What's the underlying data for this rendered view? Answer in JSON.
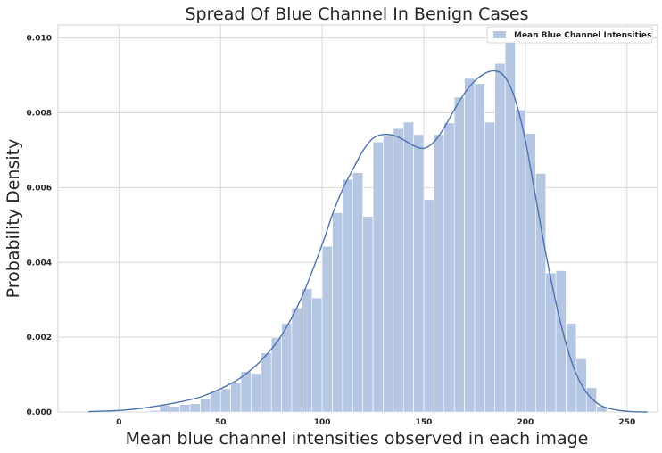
{
  "chart_data": {
    "type": "bar",
    "title": "Spread Of Blue Channel In Benign Cases",
    "xlabel": "Mean blue channel intensities observed in each image",
    "ylabel": "Probability Density",
    "xlim": [
      -30,
      265
    ],
    "ylim": [
      0,
      0.01035
    ],
    "x_ticks": [
      0,
      50,
      100,
      150,
      200,
      250
    ],
    "y_ticks": [
      0.0,
      0.002,
      0.004,
      0.006,
      0.008,
      0.01
    ],
    "y_tick_labels": [
      "0.000",
      "0.002",
      "0.004",
      "0.006",
      "0.008",
      "0.010"
    ],
    "grid": true,
    "legend": {
      "position": "top-right",
      "entries": [
        "Mean Blue Channel Intensities"
      ]
    },
    "series": [
      {
        "name": "Mean Blue Channel Intensities",
        "type": "histogram",
        "color": "#b4c6e1",
        "bin_edges": [
          15,
          20,
          25,
          30,
          35,
          40,
          45,
          50,
          55,
          60,
          65,
          70,
          75,
          80,
          85,
          90,
          95,
          100,
          105,
          110,
          115,
          120,
          125,
          130,
          135,
          140,
          145,
          150,
          155,
          160,
          165,
          170,
          175,
          180,
          185,
          190,
          195,
          200,
          205,
          210,
          215,
          220,
          225,
          230,
          235
        ],
        "values": [
          4e-05,
          0.00018,
          0.00015,
          0.0002,
          0.00022,
          0.00035,
          0.00055,
          0.00062,
          0.00078,
          0.00108,
          0.00103,
          0.00158,
          0.00198,
          0.00237,
          0.00278,
          0.0033,
          0.00305,
          0.00443,
          0.00533,
          0.00622,
          0.0064,
          0.00523,
          0.00722,
          0.00738,
          0.00758,
          0.00775,
          0.00742,
          0.00568,
          0.00742,
          0.00773,
          0.00842,
          0.00892,
          0.00878,
          0.00775,
          0.00932,
          0.00988,
          0.00808,
          0.00745,
          0.00638,
          0.00372,
          0.00378,
          0.00237,
          0.00142,
          0.00065,
          0.00015
        ]
      },
      {
        "name": "KDE",
        "type": "line",
        "color": "#4c72b0",
        "x": [
          -15,
          0,
          10,
          20,
          30,
          40,
          50,
          60,
          70,
          80,
          90,
          100,
          105,
          110,
          115,
          120,
          125,
          130,
          135,
          140,
          145,
          150,
          155,
          160,
          165,
          170,
          175,
          180,
          185,
          190,
          195,
          200,
          205,
          210,
          215,
          220,
          225,
          230,
          235,
          240,
          250,
          260
        ],
        "y": [
          1e-05,
          4e-05,
          9e-05,
          0.00017,
          0.00027,
          0.0004,
          0.00062,
          0.00092,
          0.00138,
          0.00205,
          0.00308,
          0.00448,
          0.00528,
          0.00595,
          0.00648,
          0.00698,
          0.00732,
          0.00742,
          0.0074,
          0.00728,
          0.00712,
          0.00705,
          0.00722,
          0.0076,
          0.00808,
          0.00852,
          0.00885,
          0.00905,
          0.00912,
          0.00895,
          0.00835,
          0.00725,
          0.00575,
          0.00425,
          0.00292,
          0.00182,
          0.00102,
          0.00052,
          0.00025,
          0.00011,
          2e-05,
          0.0
        ]
      }
    ]
  }
}
